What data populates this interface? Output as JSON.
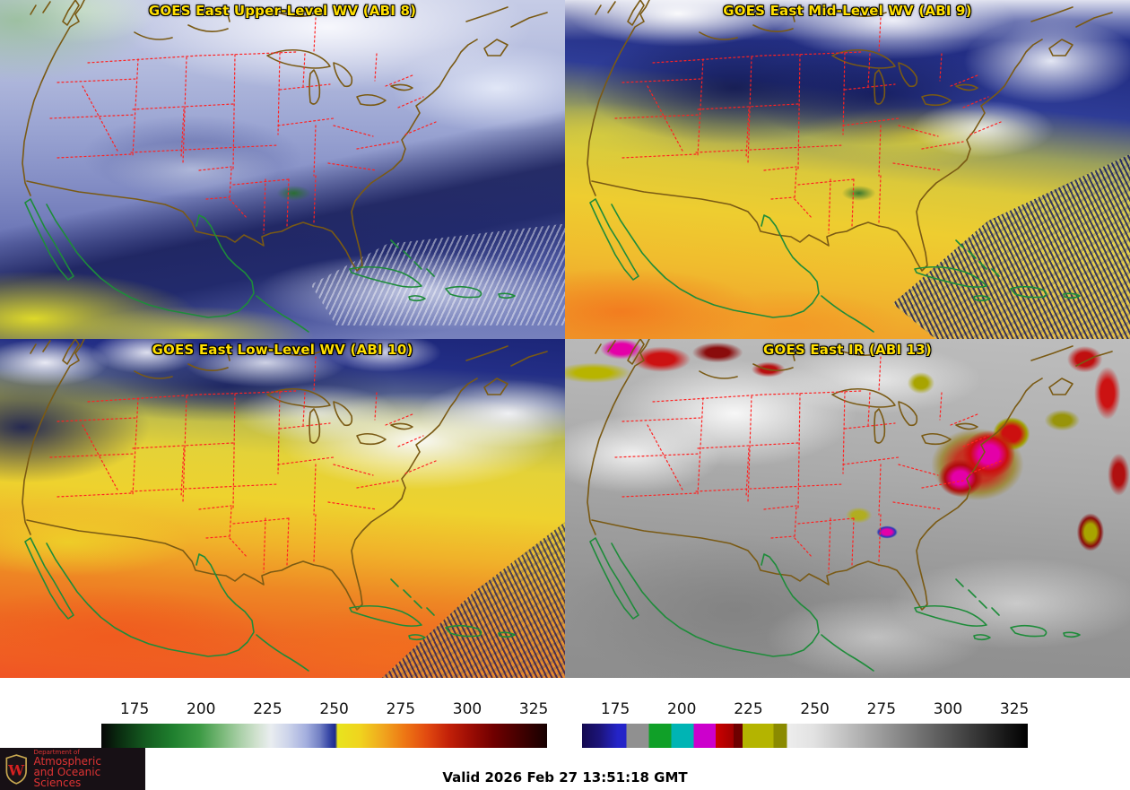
{
  "panels": [
    {
      "id": "abi8",
      "title": "GOES East Upper-Level WV (ABI 8)"
    },
    {
      "id": "abi9",
      "title": "GOES East Mid-Level WV (ABI 9)"
    },
    {
      "id": "abi10",
      "title": "GOES East Low-Level WV (ABI 10)"
    },
    {
      "id": "abi13",
      "title": "GOES East IR (ABI 13)"
    }
  ],
  "title_color": "#ffdf00",
  "colorbars": {
    "ticks": [
      175,
      200,
      225,
      250,
      275,
      300,
      325
    ],
    "range": [
      162.5,
      330
    ],
    "wv": {
      "stops": [
        {
          "p": 0,
          "c": "#060606"
        },
        {
          "p": 4,
          "c": "#0a2c10"
        },
        {
          "p": 10,
          "c": "#145c20"
        },
        {
          "p": 16,
          "c": "#1f7f2e"
        },
        {
          "p": 22,
          "c": "#3c9a44"
        },
        {
          "p": 27,
          "c": "#79b878"
        },
        {
          "p": 31,
          "c": "#a8cfa6"
        },
        {
          "p": 35,
          "c": "#d2e2d0"
        },
        {
          "p": 38,
          "c": "#e9edf0"
        },
        {
          "p": 42,
          "c": "#ccd3ea"
        },
        {
          "p": 46,
          "c": "#a3aede"
        },
        {
          "p": 49,
          "c": "#7280c4"
        },
        {
          "p": 51,
          "c": "#3a4aa8"
        },
        {
          "p": 52.5,
          "c": "#1c2a8e"
        },
        {
          "p": 53,
          "c": "#e8e41e"
        },
        {
          "p": 58,
          "c": "#f0d41e"
        },
        {
          "p": 63,
          "c": "#f0a81e"
        },
        {
          "p": 68,
          "c": "#ee7714"
        },
        {
          "p": 73,
          "c": "#e24a10"
        },
        {
          "p": 78,
          "c": "#c22008"
        },
        {
          "p": 83,
          "c": "#9a0c04"
        },
        {
          "p": 88,
          "c": "#700000"
        },
        {
          "p": 93,
          "c": "#4a0000"
        },
        {
          "p": 100,
          "c": "#160000"
        }
      ]
    },
    "ir": {
      "stops": [
        {
          "p": 0,
          "c": "#140a50"
        },
        {
          "p": 4,
          "c": "#1c147a"
        },
        {
          "p": 8,
          "c": "#2424c8"
        },
        {
          "p": 10,
          "c": "#2424c8"
        },
        {
          "p": 10,
          "c": "#909090"
        },
        {
          "p": 15,
          "c": "#909090"
        },
        {
          "p": 15,
          "c": "#10a028"
        },
        {
          "p": 20,
          "c": "#10a028"
        },
        {
          "p": 20,
          "c": "#00b4b4"
        },
        {
          "p": 25,
          "c": "#00b4b4"
        },
        {
          "p": 25,
          "c": "#cc00cc"
        },
        {
          "p": 30,
          "c": "#cc00cc"
        },
        {
          "p": 30,
          "c": "#cc0000"
        },
        {
          "p": 34,
          "c": "#a00000"
        },
        {
          "p": 34,
          "c": "#6e0000"
        },
        {
          "p": 36,
          "c": "#6e0000"
        },
        {
          "p": 36,
          "c": "#b4b400"
        },
        {
          "p": 43,
          "c": "#b4b400"
        },
        {
          "p": 43,
          "c": "#8a8a00"
        },
        {
          "p": 46,
          "c": "#8a8a00"
        },
        {
          "p": 46,
          "c": "#ededed"
        },
        {
          "p": 52,
          "c": "#e2e2e2"
        },
        {
          "p": 100,
          "c": "#000000"
        }
      ]
    }
  },
  "map_colors": {
    "us_coast": "#7a5a14",
    "mexico_caribbean_coast": "#1e8c3a",
    "state_borders": "#ff2222"
  },
  "logo": {
    "line1": "Department of",
    "line2": "Atmospheric",
    "line3": "and Oceanic Sciences",
    "crest_letter": "W",
    "text_color": "#e03434"
  },
  "footer": {
    "valid_time": "Valid 2026 Feb 27 13:51:18 GMT"
  }
}
